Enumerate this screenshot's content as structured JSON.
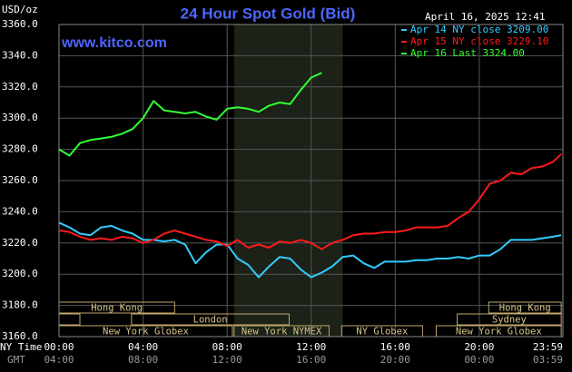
{
  "chart_data": {
    "type": "line",
    "title": "24 Hour Spot Gold (Bid)",
    "unit_label": "USD/oz",
    "timestamp": "April 16, 2025 12:41",
    "site": "www.kitco.com",
    "x_label_ny": "NY Time",
    "x_label_gmt": "GMT",
    "xlim": [
      0,
      23.98
    ],
    "xticks": [
      {
        "value": 0,
        "label": "00:00"
      },
      {
        "value": 4,
        "label": "04:00"
      },
      {
        "value": 8,
        "label": "08:00"
      },
      {
        "value": 12,
        "label": "12:00"
      },
      {
        "value": 16,
        "label": "16:00"
      },
      {
        "value": 20,
        "label": "20:00"
      },
      {
        "value": 23.98,
        "label": "23:59"
      }
    ],
    "gmt_labels": [
      "04:00",
      "08:00",
      "12:00",
      "16:00",
      "20:00",
      "00:00",
      "03:59"
    ],
    "ylim": [
      3160,
      3360
    ],
    "yticks": [
      {
        "value": 3160,
        "label": "3160.0"
      },
      {
        "value": 3180,
        "label": "3180.0"
      },
      {
        "value": 3200,
        "label": "3200.0"
      },
      {
        "value": 3220,
        "label": "3220.0"
      },
      {
        "value": 3240,
        "label": "3240.0"
      },
      {
        "value": 3260,
        "label": "3260.0"
      },
      {
        "value": 3280,
        "label": "3280.0"
      },
      {
        "value": 3300,
        "label": "3300.0"
      },
      {
        "value": 3320,
        "label": "3320.0"
      },
      {
        "value": 3340,
        "label": "3340.0"
      },
      {
        "value": 3360,
        "label": "3360.0"
      }
    ],
    "grid": true,
    "shade": [
      8.33,
      13.5
    ],
    "sessions": [
      {
        "label": "Hong Kong",
        "start": 0,
        "end": 5.5
      },
      {
        "label": "Hong Kong",
        "start": 20.45,
        "end": 23.9
      },
      {
        "label": "London",
        "start": 3.45,
        "end": 10.95
      },
      {
        "label": "Sydney",
        "start": 18.95,
        "end": 23.9
      },
      {
        "label": "New York Globex",
        "start": 0,
        "end": 8.25
      },
      {
        "label": "New York NYMEX",
        "start": 8.33,
        "end": 12.85
      },
      {
        "label": "NY Globex",
        "start": 13.45,
        "end": 17.3
      },
      {
        "label": "New York Globex",
        "start": 17.95,
        "end": 23.9
      }
    ],
    "x": [
      0,
      0.5,
      1,
      1.5,
      2,
      2.5,
      3,
      3.5,
      4,
      4.5,
      5,
      5.5,
      6,
      6.5,
      7,
      7.5,
      8,
      8.5,
      9,
      9.5,
      10,
      10.5,
      11,
      11.5,
      12,
      12.5,
      13,
      13.5,
      14,
      14.5,
      15,
      15.5,
      16,
      16.5,
      17,
      17.5,
      18,
      18.5,
      19,
      19.5,
      20,
      20.5,
      21,
      21.5,
      22,
      22.5,
      23,
      23.5,
      23.9
    ],
    "series": [
      {
        "name": "Apr 14 NY close 3209.00",
        "color": "#33ccff",
        "values": [
          3233,
          3230,
          3226,
          3225,
          3230,
          3231,
          3228,
          3226,
          3222,
          3222,
          3221,
          3222,
          3219,
          3207,
          3214,
          3219,
          3219,
          3210,
          3206,
          3198,
          3205,
          3211,
          3210,
          3203,
          3198,
          3201,
          3205,
          3211,
          3212,
          3207,
          3204,
          3208,
          3208,
          3208,
          3209,
          3209,
          3210,
          3210,
          3211,
          3210,
          3212,
          3212,
          3216,
          3222,
          3222,
          3222,
          3223,
          3224,
          3225
        ]
      },
      {
        "name": "Apr 15 NY close 3229.10",
        "color": "#ff1a1a",
        "values": [
          3228,
          3227,
          3224,
          3222,
          3223,
          3222,
          3224,
          3223,
          3220,
          3222,
          3226,
          3228,
          3226,
          3224,
          3222,
          3221,
          3218,
          3222,
          3217,
          3219,
          3217,
          3221,
          3220,
          3222,
          3220,
          3216,
          3220,
          3222,
          3225,
          3226,
          3226,
          3227,
          3227,
          3228,
          3230,
          3230,
          3230,
          3231,
          3236,
          3240,
          3248,
          3258,
          3260,
          3265,
          3264,
          3268,
          3269,
          3272,
          3277
        ]
      },
      {
        "name": "Apr 16 Last 3324.00",
        "color": "#33ff33",
        "values": [
          3280,
          3276,
          3284,
          3286,
          3287,
          3288,
          3290,
          3293,
          3300,
          3311,
          3305,
          3304,
          3303,
          3304,
          3301,
          3299,
          3306,
          3307,
          3306,
          3304,
          3308,
          3310,
          3309,
          3318,
          3326,
          3329,
          null,
          null,
          null,
          null,
          null,
          null,
          null,
          null,
          null,
          null,
          null,
          null,
          null,
          null,
          null,
          null,
          null,
          null,
          null,
          null,
          null,
          null,
          null
        ]
      }
    ]
  }
}
